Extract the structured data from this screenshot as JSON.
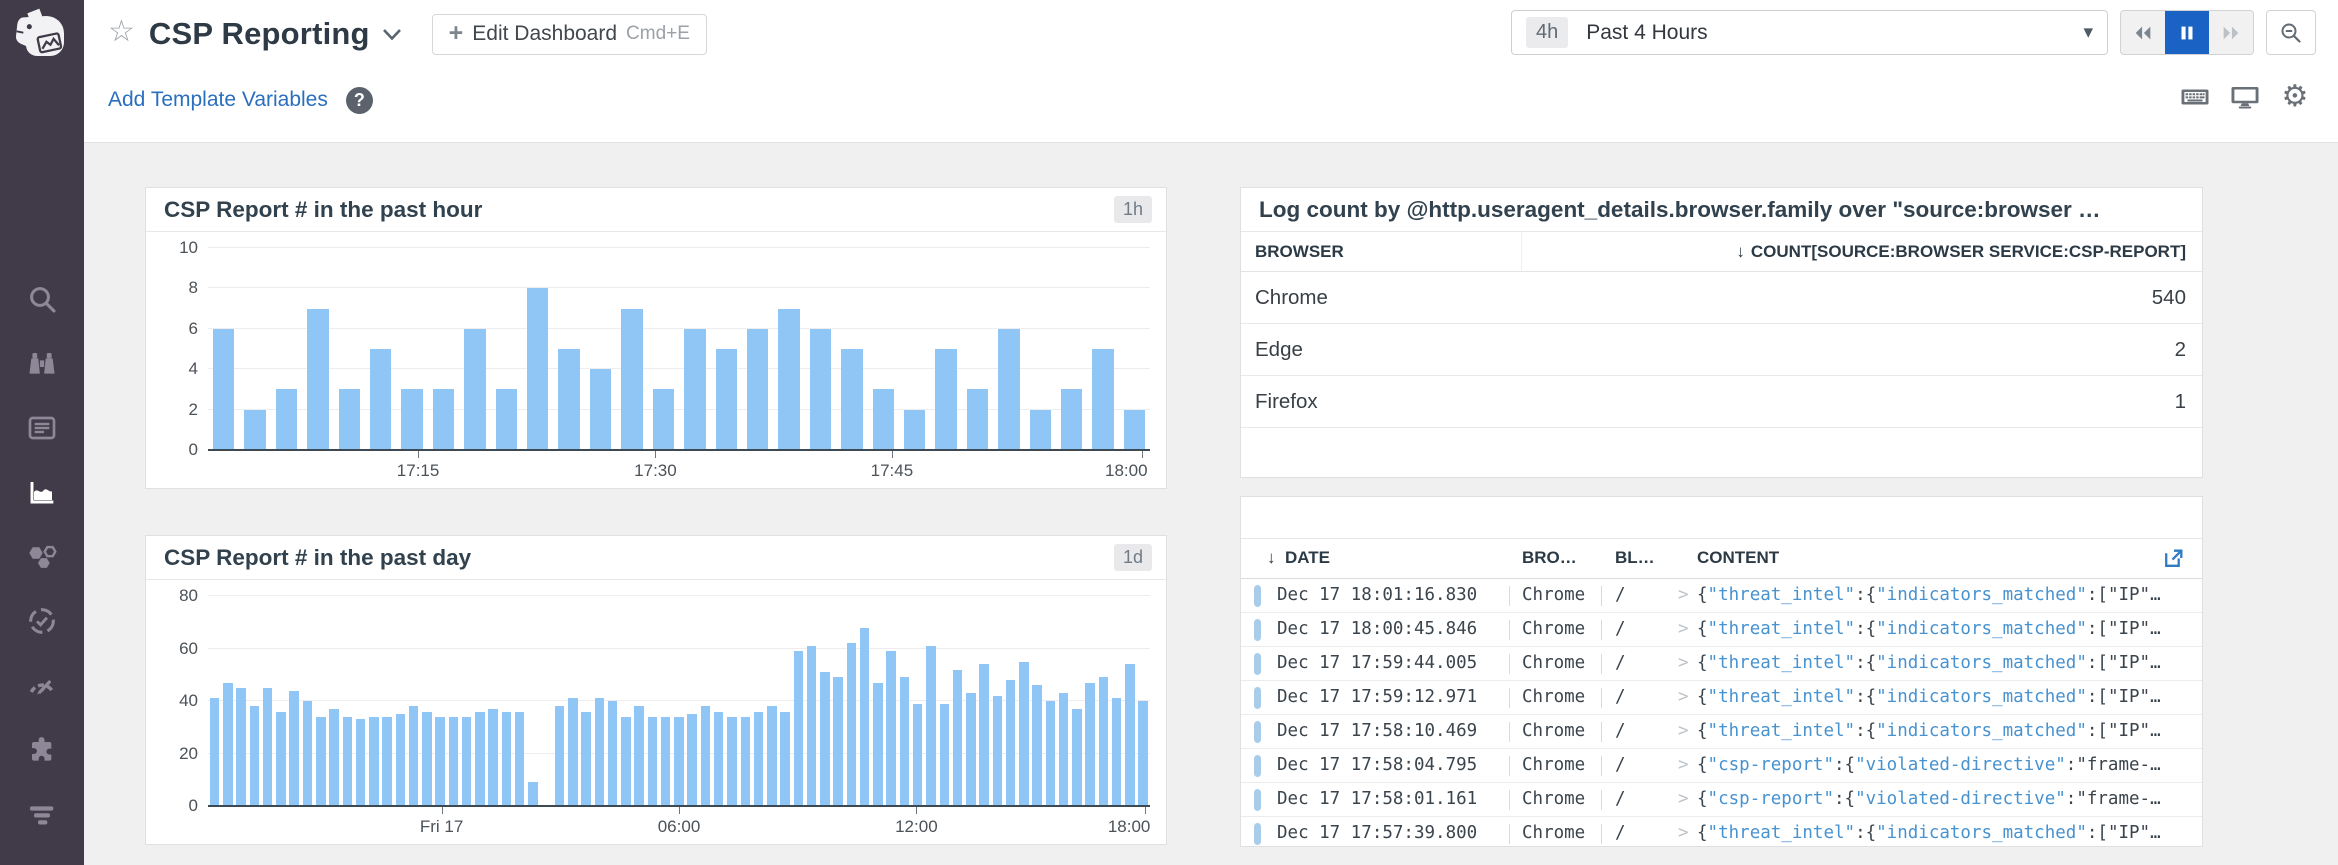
{
  "colors": {
    "sidebar_bg": "#403a49",
    "accent_blue": "#1a62c4",
    "bar_blue": "#8fc6f6",
    "link_blue": "#2a6fbe",
    "json_key_blue": "#4792d0",
    "log_pill_blue": "#a9cde9",
    "content_bg": "#f0f0f1"
  },
  "icons": {
    "star": "☆",
    "caret_down": "▾",
    "plus": "+",
    "sort_down": "↓",
    "help": "?",
    "expand": ">",
    "gear": "⚙"
  },
  "sidebar": {
    "items": [
      {
        "icon": "search-icon"
      },
      {
        "icon": "watchdog-binoculars-icon"
      },
      {
        "icon": "events-list-icon"
      },
      {
        "icon": "dashboards-chart-icon",
        "active": true
      },
      {
        "icon": "infrastructure-hexagons-icon"
      },
      {
        "icon": "monitors-icon"
      },
      {
        "icon": "apm-gauge-icon"
      },
      {
        "icon": "integrations-puzzle-icon"
      },
      {
        "icon": "logs-icon"
      }
    ]
  },
  "header": {
    "title": "CSP Reporting",
    "edit_button": {
      "label": "Edit Dashboard",
      "shortcut": "Cmd+E"
    },
    "template_vars_label": "Add Template Variables",
    "time": {
      "badge": "4h",
      "label": "Past 4 Hours"
    }
  },
  "charts": [
    {
      "type": "bar",
      "title": "CSP Report # in the past hour",
      "badge": "1h",
      "ymax": 10,
      "yticks": [
        0,
        2,
        4,
        6,
        8,
        10
      ],
      "xticks": [
        {
          "l": "17:15",
          "f": 22.3
        },
        {
          "l": "17:30",
          "f": 47.5
        },
        {
          "l": "17:45",
          "f": 72.6
        },
        {
          "l": "18:00",
          "f": 99.2
        }
      ],
      "bar_gap": 5,
      "values": [
        6,
        2,
        3,
        7,
        3,
        5,
        3,
        3,
        6,
        3,
        8,
        5,
        4,
        7,
        3,
        6,
        5,
        6,
        7,
        6,
        5,
        3,
        2,
        5,
        3,
        6,
        2,
        3,
        5,
        2
      ]
    },
    {
      "type": "bar",
      "title": "CSP Report # in the past day",
      "badge": "1d",
      "ymax": 80,
      "yticks": [
        0,
        20,
        40,
        60,
        80
      ],
      "xticks": [
        {
          "l": "Fri 17",
          "f": 24.8
        },
        {
          "l": "06:00",
          "f": 50
        },
        {
          "l": "12:00",
          "f": 75.2
        },
        {
          "l": "18:00",
          "f": 99.5
        }
      ],
      "bar_gap": 1.9,
      "values": [
        41,
        47,
        45,
        38,
        45,
        36,
        44,
        40,
        34,
        37,
        34,
        33,
        34,
        34,
        35,
        38,
        36,
        34,
        34,
        34,
        36,
        37,
        36,
        36,
        9,
        null,
        38,
        41,
        36,
        41,
        40,
        34,
        38,
        34,
        34,
        34,
        35,
        38,
        36,
        34,
        34,
        36,
        38,
        36,
        59,
        61,
        51,
        49,
        62,
        68,
        47,
        59,
        49,
        39,
        61,
        39,
        52,
        43,
        54,
        42,
        48,
        55,
        46,
        40,
        43,
        37,
        47,
        49,
        41,
        54,
        40
      ]
    }
  ],
  "toplist": {
    "title": "Log count by @http.useragent_details.browser.family over \"source:browser …",
    "columns": [
      "BROWSER",
      "COUNT[SOURCE:BROWSER SERVICE:CSP-REPORT]"
    ],
    "rows": [
      {
        "browser": "Chrome",
        "count": "540"
      },
      {
        "browser": "Edge",
        "count": "2"
      },
      {
        "browser": "Firefox",
        "count": "1"
      }
    ]
  },
  "logstream": {
    "columns": [
      "DATE",
      "BRO…",
      "BL…",
      "CONTENT"
    ],
    "content_types": {
      "threat": [
        {
          "t": "{",
          "c": "p"
        },
        {
          "t": "\"threat_intel\"",
          "c": "k"
        },
        {
          "t": ":{",
          "c": "p"
        },
        {
          "t": "\"indicators_matched\"",
          "c": "k"
        },
        {
          "t": ":[",
          "c": "p"
        },
        {
          "t": "\"IP\"",
          "c": "p"
        },
        {
          "t": "…",
          "c": "p"
        }
      ],
      "csp": [
        {
          "t": "{",
          "c": "p"
        },
        {
          "t": "\"csp-report\"",
          "c": "k"
        },
        {
          "t": ":{",
          "c": "p"
        },
        {
          "t": "\"violated-directive\"",
          "c": "k"
        },
        {
          "t": ":",
          "c": "p"
        },
        {
          "t": "\"frame-",
          "c": "p"
        },
        {
          "t": "…",
          "c": "p"
        }
      ]
    },
    "rows": [
      {
        "date": "Dec 17 18:01:16.830",
        "browser": "Chrome",
        "bl": "/",
        "content": "threat"
      },
      {
        "date": "Dec 17 18:00:45.846",
        "browser": "Chrome",
        "bl": "/",
        "content": "threat"
      },
      {
        "date": "Dec 17 17:59:44.005",
        "browser": "Chrome",
        "bl": "/",
        "content": "threat"
      },
      {
        "date": "Dec 17 17:59:12.971",
        "browser": "Chrome",
        "bl": "/",
        "content": "threat"
      },
      {
        "date": "Dec 17 17:58:10.469",
        "browser": "Chrome",
        "bl": "/",
        "content": "threat"
      },
      {
        "date": "Dec 17 17:58:04.795",
        "browser": "Chrome",
        "bl": "/",
        "content": "csp"
      },
      {
        "date": "Dec 17 17:58:01.161",
        "browser": "Chrome",
        "bl": "/",
        "content": "csp"
      },
      {
        "date": "Dec 17 17:57:39.800",
        "browser": "Chrome",
        "bl": "/",
        "content": "threat"
      }
    ]
  }
}
